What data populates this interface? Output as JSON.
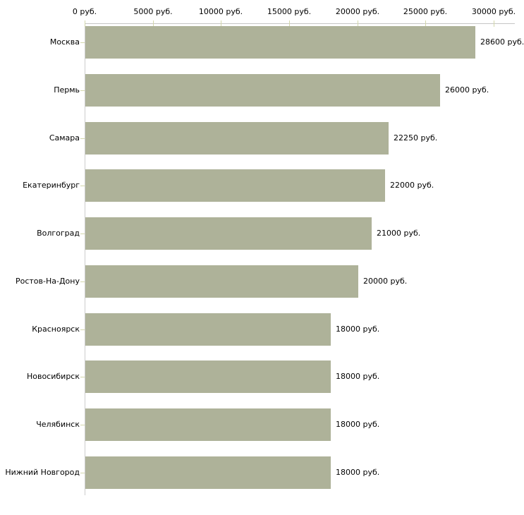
{
  "chart_data": {
    "type": "bar",
    "orientation": "horizontal",
    "title": "",
    "xlabel": "",
    "ylabel": "",
    "categories": [
      "Москва",
      "Пермь",
      "Самара",
      "Екатеринбург",
      "Волгоград",
      "Ростов-На-Дону",
      "Красноярск",
      "Новосибирск",
      "Челябинск",
      "Нижний Новгород"
    ],
    "values": [
      28600,
      26000,
      22250,
      22000,
      21000,
      20000,
      18000,
      18000,
      18000,
      18000
    ],
    "value_labels": [
      "28600 руб.",
      "26000 руб.",
      "22250 руб.",
      "22000 руб.",
      "21000 руб.",
      "20000 руб.",
      "18000 руб.",
      "18000 руб.",
      "18000 руб.",
      "18000 руб."
    ],
    "x_axis": {
      "position": "top",
      "range": [
        0,
        30000
      ],
      "ticks": [
        0,
        5000,
        10000,
        15000,
        20000,
        25000,
        30000
      ],
      "tick_labels": [
        "0 руб.",
        "5000 руб.",
        "10000 руб.",
        "15000 руб.",
        "20000 руб.",
        "25000 руб.",
        "30000 руб."
      ]
    },
    "grid": false,
    "legend": null,
    "colors": {
      "bar": "#aeb299",
      "x_axis_line": "#c6c6c6",
      "y_axis_line": "#cccccc",
      "tick_mark": "#d3d7ab",
      "text": "#000000",
      "background": "#ffffff"
    }
  }
}
